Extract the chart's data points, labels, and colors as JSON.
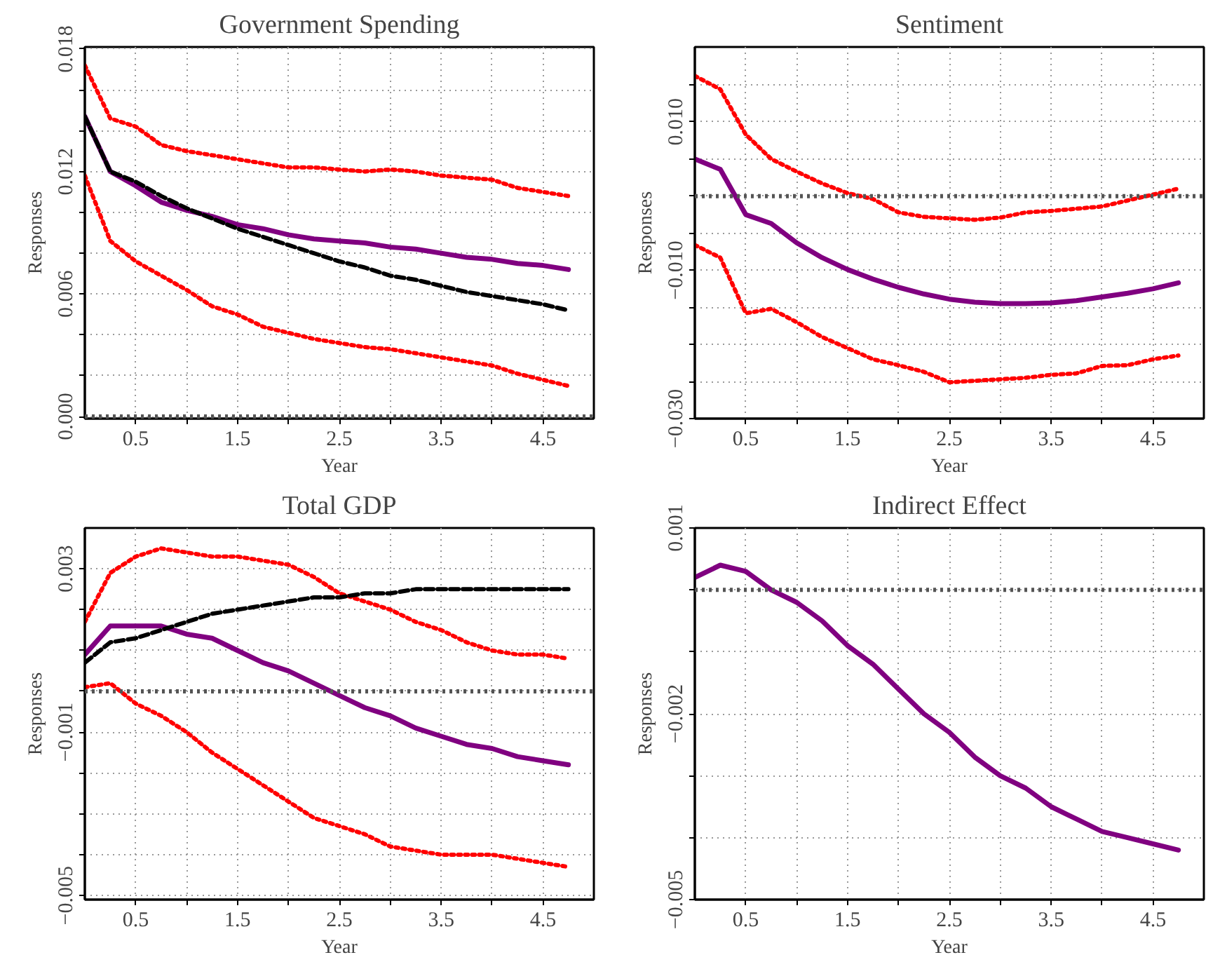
{
  "chart_data": [
    {
      "type": "line",
      "title": "Government Spending",
      "xlabel": "Year",
      "ylabel": "Responses",
      "x": [
        0,
        0.25,
        0.5,
        0.75,
        1,
        1.25,
        1.5,
        1.75,
        2,
        2.25,
        2.5,
        2.75,
        3,
        3.25,
        3.5,
        3.75,
        4,
        4.25,
        4.5,
        4.75
      ],
      "xlim": [
        0,
        5
      ],
      "xticks": [
        0.5,
        {
          "value": 1,
          "label": null
        },
        1.5,
        {
          "value": 2,
          "label": null
        },
        2.5,
        {
          "value": 3,
          "label": null
        },
        3.5,
        {
          "value": 4,
          "label": null
        },
        4.5
      ],
      "ylim": [
        -0.0001,
        0.0181
      ],
      "yticks": [
        {
          "value": 0,
          "label": "0.000"
        },
        {
          "value": 0.002,
          "label": null
        },
        {
          "value": 0.004,
          "label": null
        },
        0.006,
        {
          "value": 0.008,
          "label": null
        },
        {
          "value": 0.01,
          "label": null
        },
        0.012,
        {
          "value": 0.014,
          "label": null
        },
        {
          "value": 0.016,
          "label": null
        },
        0.018
      ],
      "grid": true,
      "marker": "none",
      "ref_lines": [
        {
          "axis": "y",
          "value": 0,
          "color": "#555555",
          "line_style": "dotted"
        }
      ],
      "series": [
        {
          "color": "#ff0000",
          "line_style": "dotted",
          "values": [
            0.0172,
            0.0146,
            0.0142,
            0.0133,
            0.013,
            0.0128,
            0.0126,
            0.0124,
            0.0122,
            0.0122,
            0.0121,
            0.012,
            0.0121,
            0.012,
            0.0118,
            0.0117,
            0.0116,
            0.0112,
            0.011,
            0.0108
          ]
        },
        {
          "color": "#ff0000",
          "line_style": "dotted",
          "values": [
            0.0118,
            0.0086,
            0.0076,
            0.0069,
            0.0062,
            0.0054,
            0.005,
            0.0044,
            0.0041,
            0.0038,
            0.0036,
            0.0034,
            0.0033,
            0.0031,
            0.0029,
            0.0027,
            0.0025,
            0.0021,
            0.0018,
            0.0015
          ]
        },
        {
          "color": "#800080",
          "line_style": "solid",
          "values": [
            0.0147,
            0.012,
            0.0113,
            0.0105,
            0.0101,
            0.0098,
            0.0094,
            0.0092,
            0.0089,
            0.0087,
            0.0086,
            0.0085,
            0.0083,
            0.0082,
            0.008,
            0.0078,
            0.0077,
            0.0075,
            0.0074,
            0.0072
          ]
        },
        {
          "color": "#000000",
          "line_style": "dashed",
          "values": [
            0.0147,
            0.012,
            0.0115,
            0.0108,
            0.0102,
            0.0097,
            0.0092,
            0.0088,
            0.0084,
            0.008,
            0.0076,
            0.0073,
            0.0069,
            0.0067,
            0.0064,
            0.0061,
            0.0059,
            0.0057,
            0.0055,
            0.0052
          ]
        }
      ]
    },
    {
      "type": "line",
      "title": "Sentiment",
      "xlabel": "Year",
      "ylabel": "Responses",
      "x": [
        0,
        0.25,
        0.5,
        0.75,
        1,
        1.25,
        1.5,
        1.75,
        2,
        2.25,
        2.5,
        2.75,
        3,
        3.25,
        3.5,
        3.75,
        4,
        4.25,
        4.5,
        4.75
      ],
      "xlim": [
        0,
        5
      ],
      "xticks": [
        0.5,
        {
          "value": 1,
          "label": null
        },
        1.5,
        {
          "value": 2,
          "label": null
        },
        2.5,
        {
          "value": 3,
          "label": null
        },
        3.5,
        {
          "value": 4,
          "label": null
        },
        4.5
      ],
      "ylim": [
        -0.03,
        0.0201
      ],
      "yticks": [
        {
          "value": -0.03,
          "label": "−0.030"
        },
        {
          "value": -0.025,
          "label": null
        },
        {
          "value": -0.02,
          "label": null
        },
        {
          "value": -0.015,
          "label": null
        },
        {
          "value": -0.01,
          "label": "−0.010"
        },
        {
          "value": -0.005,
          "label": null
        },
        {
          "value": 0,
          "label": null
        },
        {
          "value": 0.005,
          "label": null
        },
        {
          "value": 0.01,
          "label": "0.010"
        },
        {
          "value": 0.015,
          "label": null
        }
      ],
      "grid": true,
      "marker": "none",
      "ref_lines": [
        {
          "axis": "y",
          "value": 0,
          "color": "#555555",
          "line_style": "dotted"
        }
      ],
      "series": [
        {
          "color": "#ff0000",
          "line_style": "dotted",
          "values": [
            0.0162,
            0.0144,
            0.0083,
            0.005,
            0.0033,
            0.0017,
            0.0004,
            -0.0004,
            -0.0022,
            -0.0028,
            -0.003,
            -0.0032,
            -0.0029,
            -0.0022,
            -0.002,
            -0.0017,
            -0.0014,
            -0.0006,
            0.0002,
            0.001
          ]
        },
        {
          "color": "#ff0000",
          "line_style": "dotted",
          "values": [
            -0.0066,
            -0.0083,
            -0.0158,
            -0.0152,
            -0.017,
            -0.019,
            -0.0205,
            -0.022,
            -0.0228,
            -0.0237,
            -0.0251,
            -0.0249,
            -0.0247,
            -0.0245,
            -0.0241,
            -0.0239,
            -0.0229,
            -0.0228,
            -0.022,
            -0.0215
          ]
        },
        {
          "color": "#800080",
          "line_style": "solid",
          "values": [
            0.005,
            0.0036,
            -0.0025,
            -0.0037,
            -0.0063,
            -0.0083,
            -0.0099,
            -0.0112,
            -0.0123,
            -0.0132,
            -0.0139,
            -0.0143,
            -0.0145,
            -0.0145,
            -0.0144,
            -0.0141,
            -0.0136,
            -0.0131,
            -0.0125,
            -0.0117
          ]
        }
      ]
    },
    {
      "type": "line",
      "title": "Total GDP",
      "xlabel": "Year",
      "ylabel": "Responses",
      "x": [
        0,
        0.25,
        0.5,
        0.75,
        1,
        1.25,
        1.5,
        1.75,
        2,
        2.25,
        2.5,
        2.75,
        3,
        3.25,
        3.5,
        3.75,
        4,
        4.25,
        4.5,
        4.75
      ],
      "xlim": [
        0,
        5
      ],
      "xticks": [
        0.5,
        {
          "value": 1,
          "label": null
        },
        1.5,
        {
          "value": 2,
          "label": null
        },
        2.5,
        {
          "value": 3,
          "label": null
        },
        3.5,
        {
          "value": 4,
          "label": null
        },
        4.5
      ],
      "ylim": [
        -0.0051,
        0.004
      ],
      "yticks": [
        {
          "value": -0.005,
          "label": "−0.005"
        },
        {
          "value": -0.004,
          "label": null
        },
        {
          "value": -0.003,
          "label": null
        },
        {
          "value": -0.002,
          "label": null
        },
        {
          "value": -0.001,
          "label": "−0.001"
        },
        {
          "value": 0,
          "label": null
        },
        {
          "value": 0.001,
          "label": null
        },
        {
          "value": 0.002,
          "label": null
        },
        0.003
      ],
      "grid": true,
      "marker": "none",
      "ref_lines": [
        {
          "axis": "y",
          "value": 0,
          "color": "#555555",
          "line_style": "dotted"
        }
      ],
      "series": [
        {
          "color": "#ff0000",
          "line_style": "dotted",
          "values": [
            0.0017,
            0.0029,
            0.0033,
            0.0035,
            0.0034,
            0.0033,
            0.0033,
            0.0032,
            0.0031,
            0.0028,
            0.0024,
            0.0022,
            0.002,
            0.0017,
            0.0015,
            0.0012,
            0.001,
            0.0009,
            0.0009,
            0.0008
          ]
        },
        {
          "color": "#ff0000",
          "line_style": "dotted",
          "values": [
            0.0001,
            0.0002,
            -0.0003,
            -0.0006,
            -0.001,
            -0.0015,
            -0.0019,
            -0.0023,
            -0.0027,
            -0.0031,
            -0.0033,
            -0.0035,
            -0.0038,
            -0.0039,
            -0.004,
            -0.004,
            -0.004,
            -0.0041,
            -0.0042,
            -0.0043
          ]
        },
        {
          "color": "#800080",
          "line_style": "solid",
          "values": [
            0.0009,
            0.0016,
            0.0016,
            0.0016,
            0.0014,
            0.0013,
            0.001,
            0.0007,
            0.0005,
            0.0002,
            -0.0001,
            -0.0004,
            -0.0006,
            -0.0009,
            -0.0011,
            -0.0013,
            -0.0014,
            -0.0016,
            -0.0017,
            -0.0018
          ]
        },
        {
          "color": "#000000",
          "line_style": "dashed",
          "values": [
            0.0007,
            0.0012,
            0.0013,
            0.0015,
            0.0017,
            0.0019,
            0.002,
            0.0021,
            0.0022,
            0.0023,
            0.0023,
            0.0024,
            0.0024,
            0.0025,
            0.0025,
            0.0025,
            0.0025,
            0.0025,
            0.0025,
            0.0025
          ]
        }
      ]
    },
    {
      "type": "line",
      "title": "Indirect Effect",
      "xlabel": "Year",
      "ylabel": "Responses",
      "x": [
        0,
        0.25,
        0.5,
        0.75,
        1,
        1.25,
        1.5,
        1.75,
        2,
        2.25,
        2.5,
        2.75,
        3,
        3.25,
        3.5,
        3.75,
        4,
        4.25,
        4.5,
        4.75
      ],
      "xlim": [
        0,
        5
      ],
      "xticks": [
        0.5,
        {
          "value": 1,
          "label": null
        },
        1.5,
        {
          "value": 2,
          "label": null
        },
        2.5,
        {
          "value": 3,
          "label": null
        },
        3.5,
        {
          "value": 4,
          "label": null
        },
        4.5
      ],
      "ylim": [
        -0.005,
        0.001
      ],
      "yticks": [
        {
          "value": -0.005,
          "label": "−0.005"
        },
        {
          "value": -0.004,
          "label": null
        },
        {
          "value": -0.003,
          "label": null
        },
        {
          "value": -0.002,
          "label": "−0.002"
        },
        {
          "value": -0.001,
          "label": null
        },
        {
          "value": 0,
          "label": null
        },
        0.001
      ],
      "grid": true,
      "marker": "none",
      "ref_lines": [
        {
          "axis": "y",
          "value": 0,
          "color": "#555555",
          "line_style": "dotted"
        }
      ],
      "series": [
        {
          "color": "#800080",
          "line_style": "solid",
          "values": [
            0.0002,
            0.0004,
            0.0003,
            0.0,
            -0.0002,
            -0.0005,
            -0.0009,
            -0.0012,
            -0.0016,
            -0.002,
            -0.0023,
            -0.0027,
            -0.003,
            -0.0032,
            -0.0035,
            -0.0037,
            -0.0039,
            -0.004,
            -0.0041,
            -0.0042
          ]
        }
      ]
    }
  ]
}
